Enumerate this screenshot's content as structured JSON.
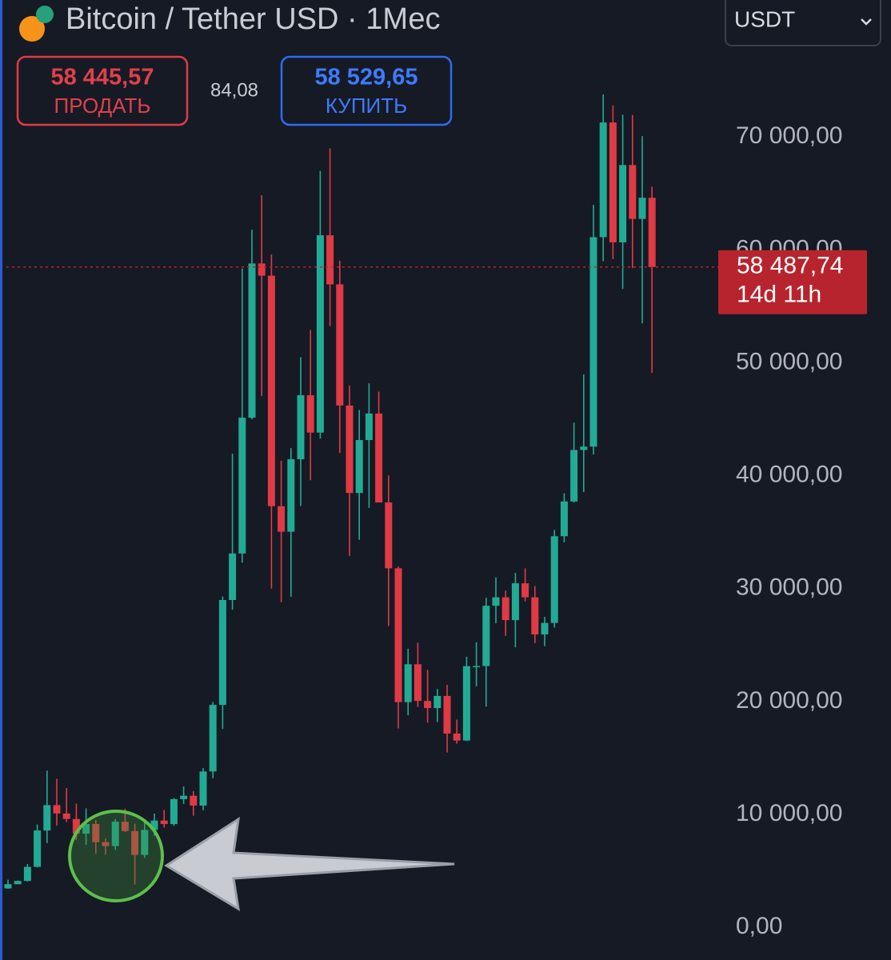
{
  "header": {
    "title": "Bitcoin / Tether USD · 1Мес",
    "currency": "USDT"
  },
  "trade": {
    "sell_price": "58 445,57",
    "sell_label": "ПРОДАТЬ",
    "spread": "84,08",
    "buy_price": "58 529,65",
    "buy_label": "КУПИТЬ"
  },
  "chart_data": {
    "type": "candlestick",
    "up_color": "#22ab94",
    "down_color": "#e03a45",
    "ylim": [
      -2900,
      82140
    ],
    "yticks": [
      {
        "value": 0,
        "label": "0,00"
      },
      {
        "value": 10000,
        "label": "10 000,00"
      },
      {
        "value": 20000,
        "label": "20 000,00"
      },
      {
        "value": 30000,
        "label": "30 000,00"
      },
      {
        "value": 40000,
        "label": "40 000,00"
      },
      {
        "value": 50000,
        "label": "50 000,00"
      },
      {
        "value": 60000,
        "label": "60 000,00"
      },
      {
        "value": 70000,
        "label": "70 000,00"
      }
    ],
    "open": [
      3437,
      3816,
      4105,
      5350,
      8575,
      10820,
      10080,
      9590,
      8290,
      9150,
      7540,
      7190,
      9350,
      8520,
      6410,
      8620,
      9450,
      9140,
      11350,
      11650,
      10780,
      13800,
      19700,
      28990,
      33110,
      45140,
      58800,
      57720,
      37300,
      35040,
      41460,
      47130,
      43820,
      61300,
      56950,
      46220,
      38470,
      43160,
      45510,
      37630,
      31800,
      19940,
      23300,
      20050,
      19420,
      20490,
      17160,
      16540,
      23130,
      23140,
      28480,
      29230,
      27210,
      30470,
      29230,
      25940,
      26960,
      34640,
      37720,
      42280,
      42580,
      61130,
      71290,
      60670,
      67520,
      62750,
      64620
    ],
    "high": [
      4210,
      4140,
      5600,
      9100,
      13880,
      13150,
      12330,
      10950,
      10540,
      9500,
      7870,
      9580,
      10500,
      9190,
      9470,
      10070,
      10390,
      11440,
      12470,
      12060,
      14100,
      19950,
      29300,
      41950,
      58350,
      61780,
      64850,
      59600,
      41330,
      42450,
      50500,
      52920,
      67000,
      69000,
      59050,
      47990,
      45820,
      48190,
      47440,
      40020,
      31960,
      24670,
      25210,
      22800,
      21100,
      21480,
      18390,
      23960,
      25250,
      29180,
      31000,
      29820,
      31390,
      31800,
      30230,
      27490,
      35200,
      38450,
      44700,
      48970,
      64000,
      73780,
      72800,
      71980,
      71950,
      70080,
      65600
    ],
    "low": [
      3400,
      3800,
      4050,
      5300,
      7450,
      9000,
      9320,
      7710,
      7300,
      6520,
      6430,
      6850,
      8450,
      3780,
      6150,
      8100,
      8830,
      8980,
      10930,
      9880,
      10370,
      13200,
      17570,
      28130,
      32300,
      45000,
      47050,
      30000,
      28800,
      29280,
      37330,
      39600,
      43290,
      53250,
      42000,
      32900,
      34320,
      37150,
      37700,
      26700,
      17620,
      18780,
      19520,
      18130,
      18190,
      15480,
      16260,
      16500,
      21350,
      19550,
      26940,
      25810,
      24800,
      28860,
      25170,
      24900,
      26540,
      34090,
      37620,
      38550,
      41880,
      59000,
      59190,
      56550,
      58400,
      53500,
      49100
    ],
    "close": [
      3816,
      4105,
      5350,
      8575,
      10820,
      10080,
      9590,
      8290,
      9150,
      7540,
      7190,
      9350,
      8520,
      6410,
      8620,
      9450,
      9140,
      11350,
      11650,
      10780,
      13800,
      19700,
      28990,
      33110,
      45140,
      58800,
      57720,
      37300,
      35040,
      41460,
      47130,
      43820,
      61300,
      56950,
      46220,
      38470,
      43160,
      45510,
      37630,
      31800,
      19940,
      23300,
      20050,
      19420,
      20490,
      17160,
      16540,
      23130,
      23140,
      28480,
      29230,
      27210,
      30470,
      29230,
      25940,
      26960,
      34640,
      37720,
      42280,
      42580,
      61130,
      71290,
      60670,
      67520,
      62750,
      64620,
      58488
    ],
    "last_price": {
      "value": 58487.74,
      "label": "58 487,74",
      "countdown": "14d 11h",
      "color": "#b8242d"
    }
  }
}
